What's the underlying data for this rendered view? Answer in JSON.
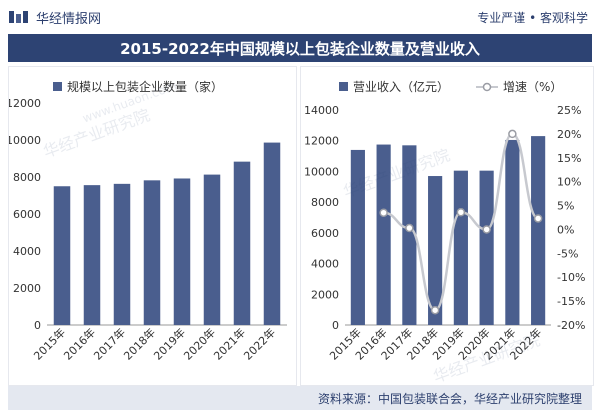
{
  "header": {
    "brand_name": "华经情报网",
    "tagline": "专业严谨 • 客观科学"
  },
  "title": "2015-2022年中国规模以上包装企业数量及营业收入",
  "footer": {
    "source": "资料来源：中国包装联合会，华经产业研究院整理"
  },
  "watermarks": [
    "华经产业研究院",
    "www.huaon.com"
  ],
  "colors": {
    "bar": "#4a5e8e",
    "line": "#c7c9cf",
    "title_bg": "#2d4373"
  },
  "chart_data": [
    {
      "type": "bar",
      "categories": [
        "2015年",
        "2016年",
        "2017年",
        "2018年",
        "2019年",
        "2020年",
        "2021年",
        "2022年"
      ],
      "series": [
        {
          "name": "规模以上包装企业数量（家）",
          "values": [
            7500,
            7560,
            7630,
            7820,
            7920,
            8130,
            8830,
            9860
          ]
        }
      ],
      "ylim": [
        0,
        12000
      ],
      "yticks": [
        "0",
        "2000",
        "4000",
        "6000",
        "8000",
        "10000",
        "12000"
      ],
      "grid": false,
      "legend": "top-left"
    },
    {
      "type": "bar",
      "categories": [
        "2015年",
        "2016年",
        "2017年",
        "2018年",
        "2019年",
        "2020年",
        "2021年",
        "2022年"
      ],
      "series": [
        {
          "name": "营业收入（亿元）",
          "type": "bar",
          "axis": "left",
          "values": [
            11400,
            11750,
            11700,
            9700,
            10050,
            10050,
            12050,
            12300
          ]
        },
        {
          "name": "增速（%）",
          "type": "line",
          "axis": "right",
          "values": [
            null,
            3.5,
            0.3,
            -16.9,
            3.6,
            0.0,
            20.0,
            2.3
          ]
        }
      ],
      "ylim": [
        0,
        14000
      ],
      "yticks": [
        "0",
        "2000",
        "4000",
        "6000",
        "8000",
        "10000",
        "12000",
        "14000"
      ],
      "y2lim": [
        -20,
        25
      ],
      "y2ticks": [
        "-20%",
        "-15%",
        "-10%",
        "-5%",
        "0%",
        "5%",
        "10%",
        "15%",
        "20%",
        "25%"
      ],
      "grid": false,
      "legend": "top"
    }
  ]
}
